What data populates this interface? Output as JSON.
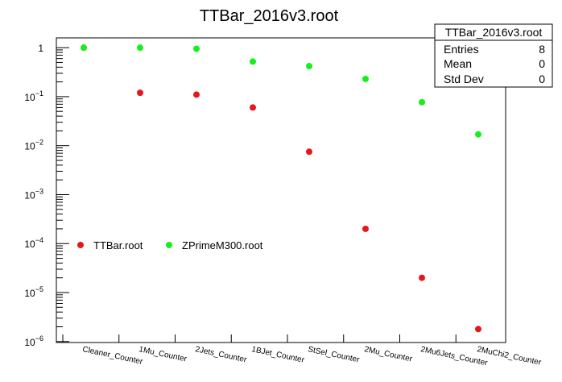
{
  "chart_data": {
    "type": "scatter",
    "title": "TTBar_2016v3.root",
    "xlabel": "",
    "ylabel": "",
    "yscale": "log",
    "ylim": [
      1e-06,
      1.6
    ],
    "grid": false,
    "legend_placement": "middle-left",
    "categories": [
      "Cleaner_Counter",
      "1Mu_Counter",
      "2Jets_Counter",
      "1BJet_Counter",
      "StSel_Counter",
      "2Mu_Counter",
      "2Mu6Jets_Counter",
      "2MuChi2_Counter"
    ],
    "y_ticks": [
      {
        "value": 1e-06,
        "base": "10",
        "exp": "−6"
      },
      {
        "value": 1e-05,
        "base": "10",
        "exp": "−5"
      },
      {
        "value": 0.0001,
        "base": "10",
        "exp": "−4"
      },
      {
        "value": 0.001,
        "base": "10",
        "exp": "−3"
      },
      {
        "value": 0.01,
        "base": "10",
        "exp": "−2"
      },
      {
        "value": 0.1,
        "base": "10",
        "exp": "−1"
      },
      {
        "value": 1,
        "base": "1",
        "exp": ""
      }
    ],
    "series": [
      {
        "name": "TTBar.root",
        "color": "#e8161b",
        "values": [
          1.0,
          0.12,
          0.11,
          0.06,
          0.0075,
          0.0002,
          2e-05,
          1.8e-06
        ]
      },
      {
        "name": "ZPrimeM300.root",
        "color": "#15f01a",
        "values": [
          1.0,
          1.0,
          0.95,
          0.52,
          0.42,
          0.23,
          0.077,
          0.017
        ]
      }
    ],
    "stats_box": {
      "title": "TTBar_2016v3.root",
      "rows": [
        {
          "label": "Entries",
          "value": "8"
        },
        {
          "label": "Mean",
          "value": "0"
        },
        {
          "label": "Std Dev",
          "value": "0"
        }
      ]
    }
  }
}
